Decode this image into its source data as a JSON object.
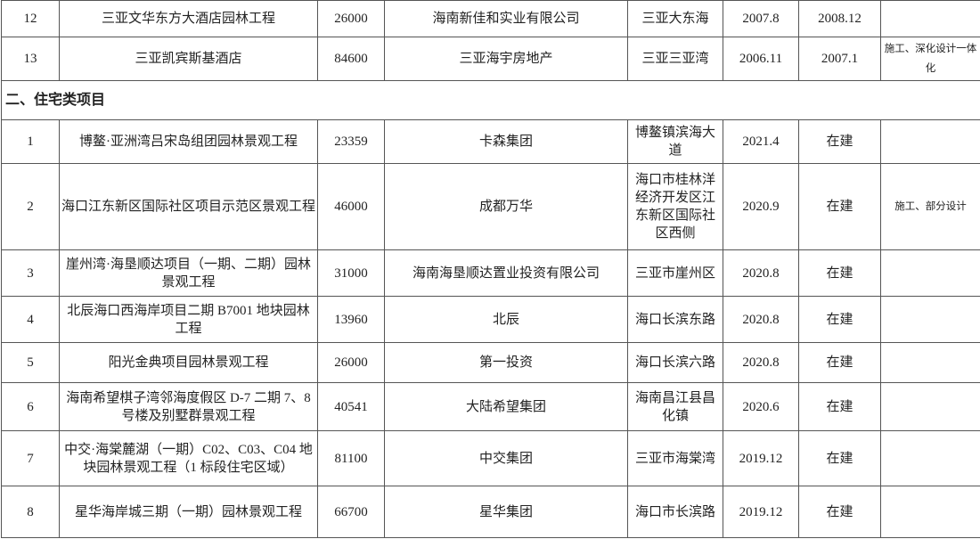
{
  "rows_top": [
    {
      "no": "12",
      "project": "三亚文华东方大酒店园林工程",
      "area": "26000",
      "client": "海南新佳和实业有限公司",
      "location": "三亚大东海",
      "start": "2007.8",
      "end": "2008.12",
      "note": ""
    },
    {
      "no": "13",
      "project": "三亚凯宾斯基酒店",
      "area": "84600",
      "client": "三亚海宇房地产",
      "location": "三亚三亚湾",
      "start": "2006.11",
      "end": "2007.1",
      "note": "施工、深化设计一体化"
    }
  ],
  "section_title": "二、住宅类项目",
  "rows": [
    {
      "no": "1",
      "project": "博鳌·亚洲湾吕宋岛组团园林景观工程",
      "area": "23359",
      "client": "卡森集团",
      "location": "博鳌镇滨海大道",
      "start": "2021.4",
      "end": "在建",
      "note": ""
    },
    {
      "no": "2",
      "project": "海口江东新区国际社区项目示范区景观工程",
      "area": "46000",
      "client": "成都万华",
      "location": "海口市桂林洋经济开发区江东新区国际社区西侧",
      "start": "2020.9",
      "end": "在建",
      "note": "施工、部分设计"
    },
    {
      "no": "3",
      "project": "崖州湾·海垦顺达项目（一期、二期）园林景观工程",
      "area": "31000",
      "client": "海南海垦顺达置业投资有限公司",
      "location": "三亚市崖州区",
      "start": "2020.8",
      "end": "在建",
      "note": ""
    },
    {
      "no": "4",
      "project": "北辰海口西海岸项目二期 B7001 地块园林工程",
      "area": "13960",
      "client": "北辰",
      "location": "海口长滨东路",
      "start": "2020.8",
      "end": "在建",
      "note": ""
    },
    {
      "no": "5",
      "project": "阳光金典项目园林景观工程",
      "area": "26000",
      "client": "第一投资",
      "location": "海口长滨六路",
      "start": "2020.8",
      "end": "在建",
      "note": ""
    },
    {
      "no": "6",
      "project": "海南希望棋子湾邻海度假区 D-7 二期 7、8 号楼及别墅群景观工程",
      "area": "40541",
      "client": "大陆希望集团",
      "location": "海南昌江县昌化镇",
      "start": "2020.6",
      "end": "在建",
      "note": ""
    },
    {
      "no": "7",
      "project": "中交·海棠麓湖（一期）C02、C03、C04 地块园林景观工程（1 标段住宅区域）",
      "area": "81100",
      "client": "中交集团",
      "location": "三亚市海棠湾",
      "start": "2019.12",
      "end": "在建",
      "note": ""
    },
    {
      "no": "8",
      "project": "星华海岸城三期（一期）园林景观工程",
      "area": "66700",
      "client": "星华集团",
      "location": "海口市长滨路",
      "start": "2019.12",
      "end": "在建",
      "note": ""
    }
  ]
}
